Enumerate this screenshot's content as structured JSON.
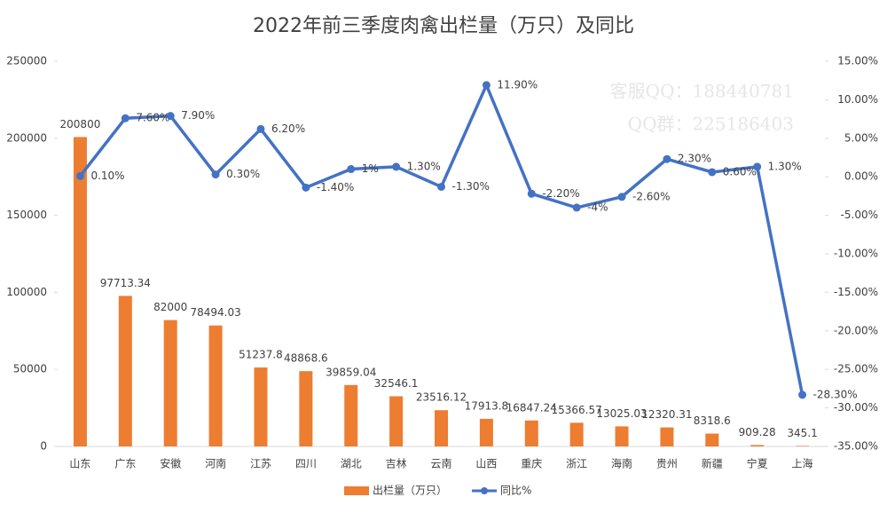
{
  "chart_data": {
    "type": "bar-line",
    "title": "2022年前三季度肉禽出栏量（万只）及同比",
    "annotations": [
      "客服QQ：188440781",
      "QQ群：225186403"
    ],
    "categories": [
      "山东",
      "广东",
      "安徽",
      "河南",
      "江苏",
      "四川",
      "湖北",
      "吉林",
      "云南",
      "山西",
      "重庆",
      "浙江",
      "海南",
      "贵州",
      "新疆",
      "宁夏",
      "上海"
    ],
    "series": [
      {
        "name": "出栏量（万只）",
        "color": "#ed7d31",
        "type": "bar",
        "values": [
          200800,
          97713.34,
          82000,
          78494.03,
          51237.8,
          48868.6,
          39859.04,
          32546.1,
          23516.12,
          17913.8,
          16847.24,
          15366.57,
          13025.03,
          12320.31,
          8318.6,
          909.28,
          345.1
        ]
      },
      {
        "name": "同比%",
        "color": "#4472c4",
        "type": "line",
        "axis": "y2",
        "values": [
          0.1,
          7.6,
          7.9,
          0.3,
          6.2,
          -1.4,
          1,
          1.3,
          -1.3,
          11.9,
          -2.2,
          -4,
          -2.6,
          2.3,
          0.6,
          1.3,
          -28.3
        ],
        "value_labels": [
          "0.10%",
          "7.60%",
          "7.90%",
          "0.30%",
          "6.20%",
          "-1.40%",
          "1%",
          "1.30%",
          "-1.30%",
          "11.90%",
          "-2.20%",
          "-4%",
          "-2.60%",
          "2.30%",
          "0.60%",
          "1.30%",
          "-28.30%"
        ]
      }
    ],
    "ylim": [
      0,
      250000
    ],
    "yticks": [
      0,
      50000,
      100000,
      150000,
      200000,
      250000
    ],
    "y2lim": [
      -35,
      15
    ],
    "y2ticks": [
      {
        "value": -35,
        "label": "-35.00%"
      },
      {
        "value": -30,
        "label": "-30.00%"
      },
      {
        "value": -25,
        "label": "-25.00%"
      },
      {
        "value": -20,
        "label": "-20.00%"
      },
      {
        "value": -15,
        "label": "-15.00%"
      },
      {
        "value": -10,
        "label": "-10.00%"
      },
      {
        "value": -5,
        "label": "-5.00%"
      },
      {
        "value": 0,
        "label": "0.00%"
      },
      {
        "value": 5,
        "label": "5.00%"
      },
      {
        "value": 10,
        "label": "10.00%"
      },
      {
        "value": 15,
        "label": "15.00%"
      }
    ],
    "legend": "bottom"
  }
}
